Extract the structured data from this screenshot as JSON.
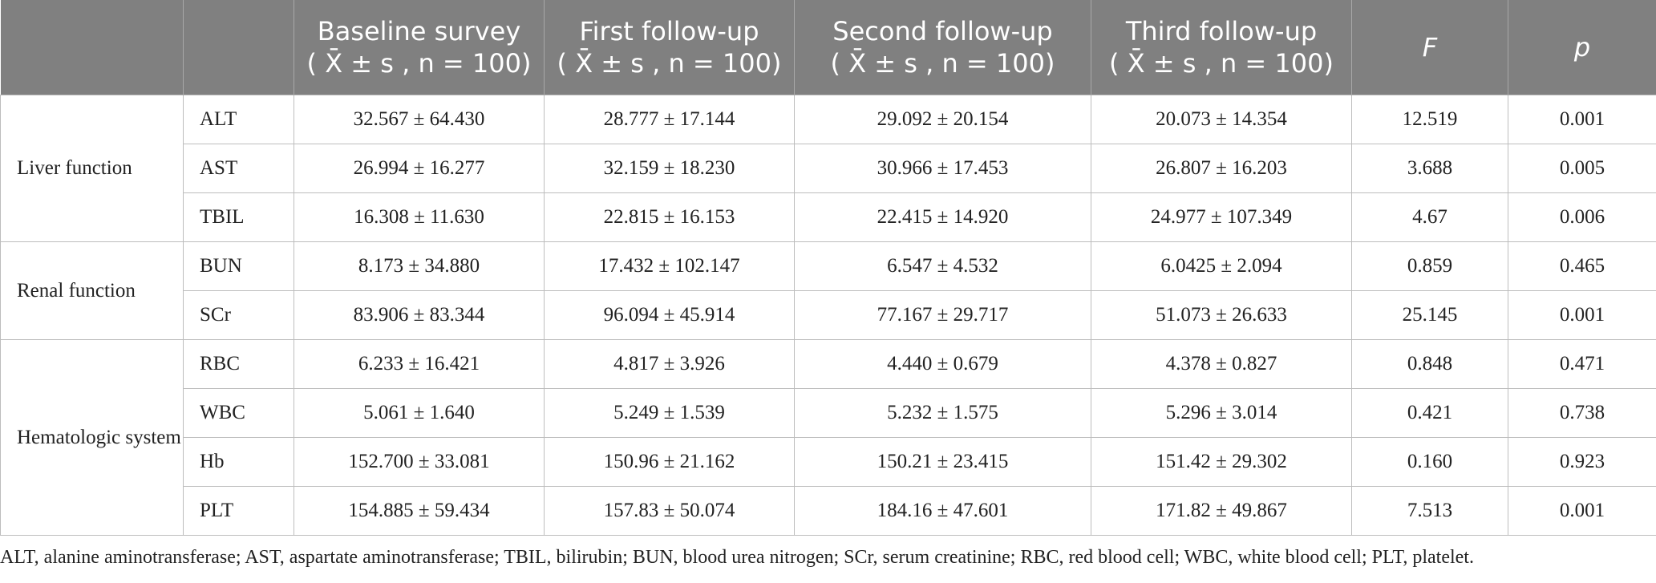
{
  "table": {
    "header": [
      {
        "title": "",
        "sub": ""
      },
      {
        "title": "",
        "sub": ""
      },
      {
        "title": "Baseline survey",
        "sub": "( X̄ ± s , n = 100)"
      },
      {
        "title": "First follow-up",
        "sub": "( X̄ ± s , n = 100)"
      },
      {
        "title": "Second follow-up",
        "sub": "( X̄ ± s , n = 100)"
      },
      {
        "title": "Third follow-up",
        "sub": "( X̄ ± s , n = 100)"
      },
      {
        "title": "F",
        "sub": ""
      },
      {
        "title": "p",
        "sub": ""
      }
    ],
    "groups": [
      {
        "name": "Liver function",
        "rows": [
          [
            "ALT",
            "32.567 ± 64.430",
            "28.777 ± 17.144",
            "29.092 ± 20.154",
            "20.073 ± 14.354",
            "12.519",
            "0.001"
          ],
          [
            "AST",
            "26.994 ± 16.277",
            "32.159 ± 18.230",
            "30.966 ± 17.453",
            "26.807 ± 16.203",
            "3.688",
            "0.005"
          ],
          [
            "TBIL",
            "16.308 ± 11.630",
            "22.815 ± 16.153",
            "22.415 ± 14.920",
            "24.977 ± 107.349",
            "4.67",
            "0.006"
          ]
        ]
      },
      {
        "name": "Renal function",
        "rows": [
          [
            "BUN",
            "8.173 ± 34.880",
            "17.432 ± 102.147",
            "6.547 ± 4.532",
            "6.0425 ± 2.094",
            "0.859",
            "0.465"
          ],
          [
            "SCr",
            "83.906 ± 83.344",
            "96.094 ± 45.914",
            "77.167 ± 29.717",
            "51.073 ± 26.633",
            "25.145",
            "0.001"
          ]
        ]
      },
      {
        "name": "Hematologic system",
        "rows": [
          [
            "RBC",
            "6.233 ± 16.421",
            "4.817 ± 3.926",
            "4.440 ± 0.679",
            "4.378 ± 0.827",
            "0.848",
            "0.471"
          ],
          [
            "WBC",
            "5.061 ± 1.640",
            "5.249 ± 1.539",
            "5.232 ± 1.575",
            "5.296 ± 3.014",
            "0.421",
            "0.738"
          ],
          [
            "Hb",
            "152.700 ± 33.081",
            "150.96 ± 21.162",
            "150.21 ± 23.415",
            "151.42 ± 29.302",
            "0.160",
            "0.923"
          ],
          [
            "PLT",
            "154.885 ± 59.434",
            "157.83 ± 50.074",
            "184.16 ± 47.601",
            "171.82 ± 49.867",
            "7.513",
            "0.001"
          ]
        ]
      }
    ]
  },
  "footnote": "ALT, alanine aminotransferase; AST, aspartate aminotransferase; TBIL, bilirubin; BUN, blood urea nitrogen; SCr, serum creatinine; RBC, red blood cell; WBC, white blood cell; PLT, platelet."
}
